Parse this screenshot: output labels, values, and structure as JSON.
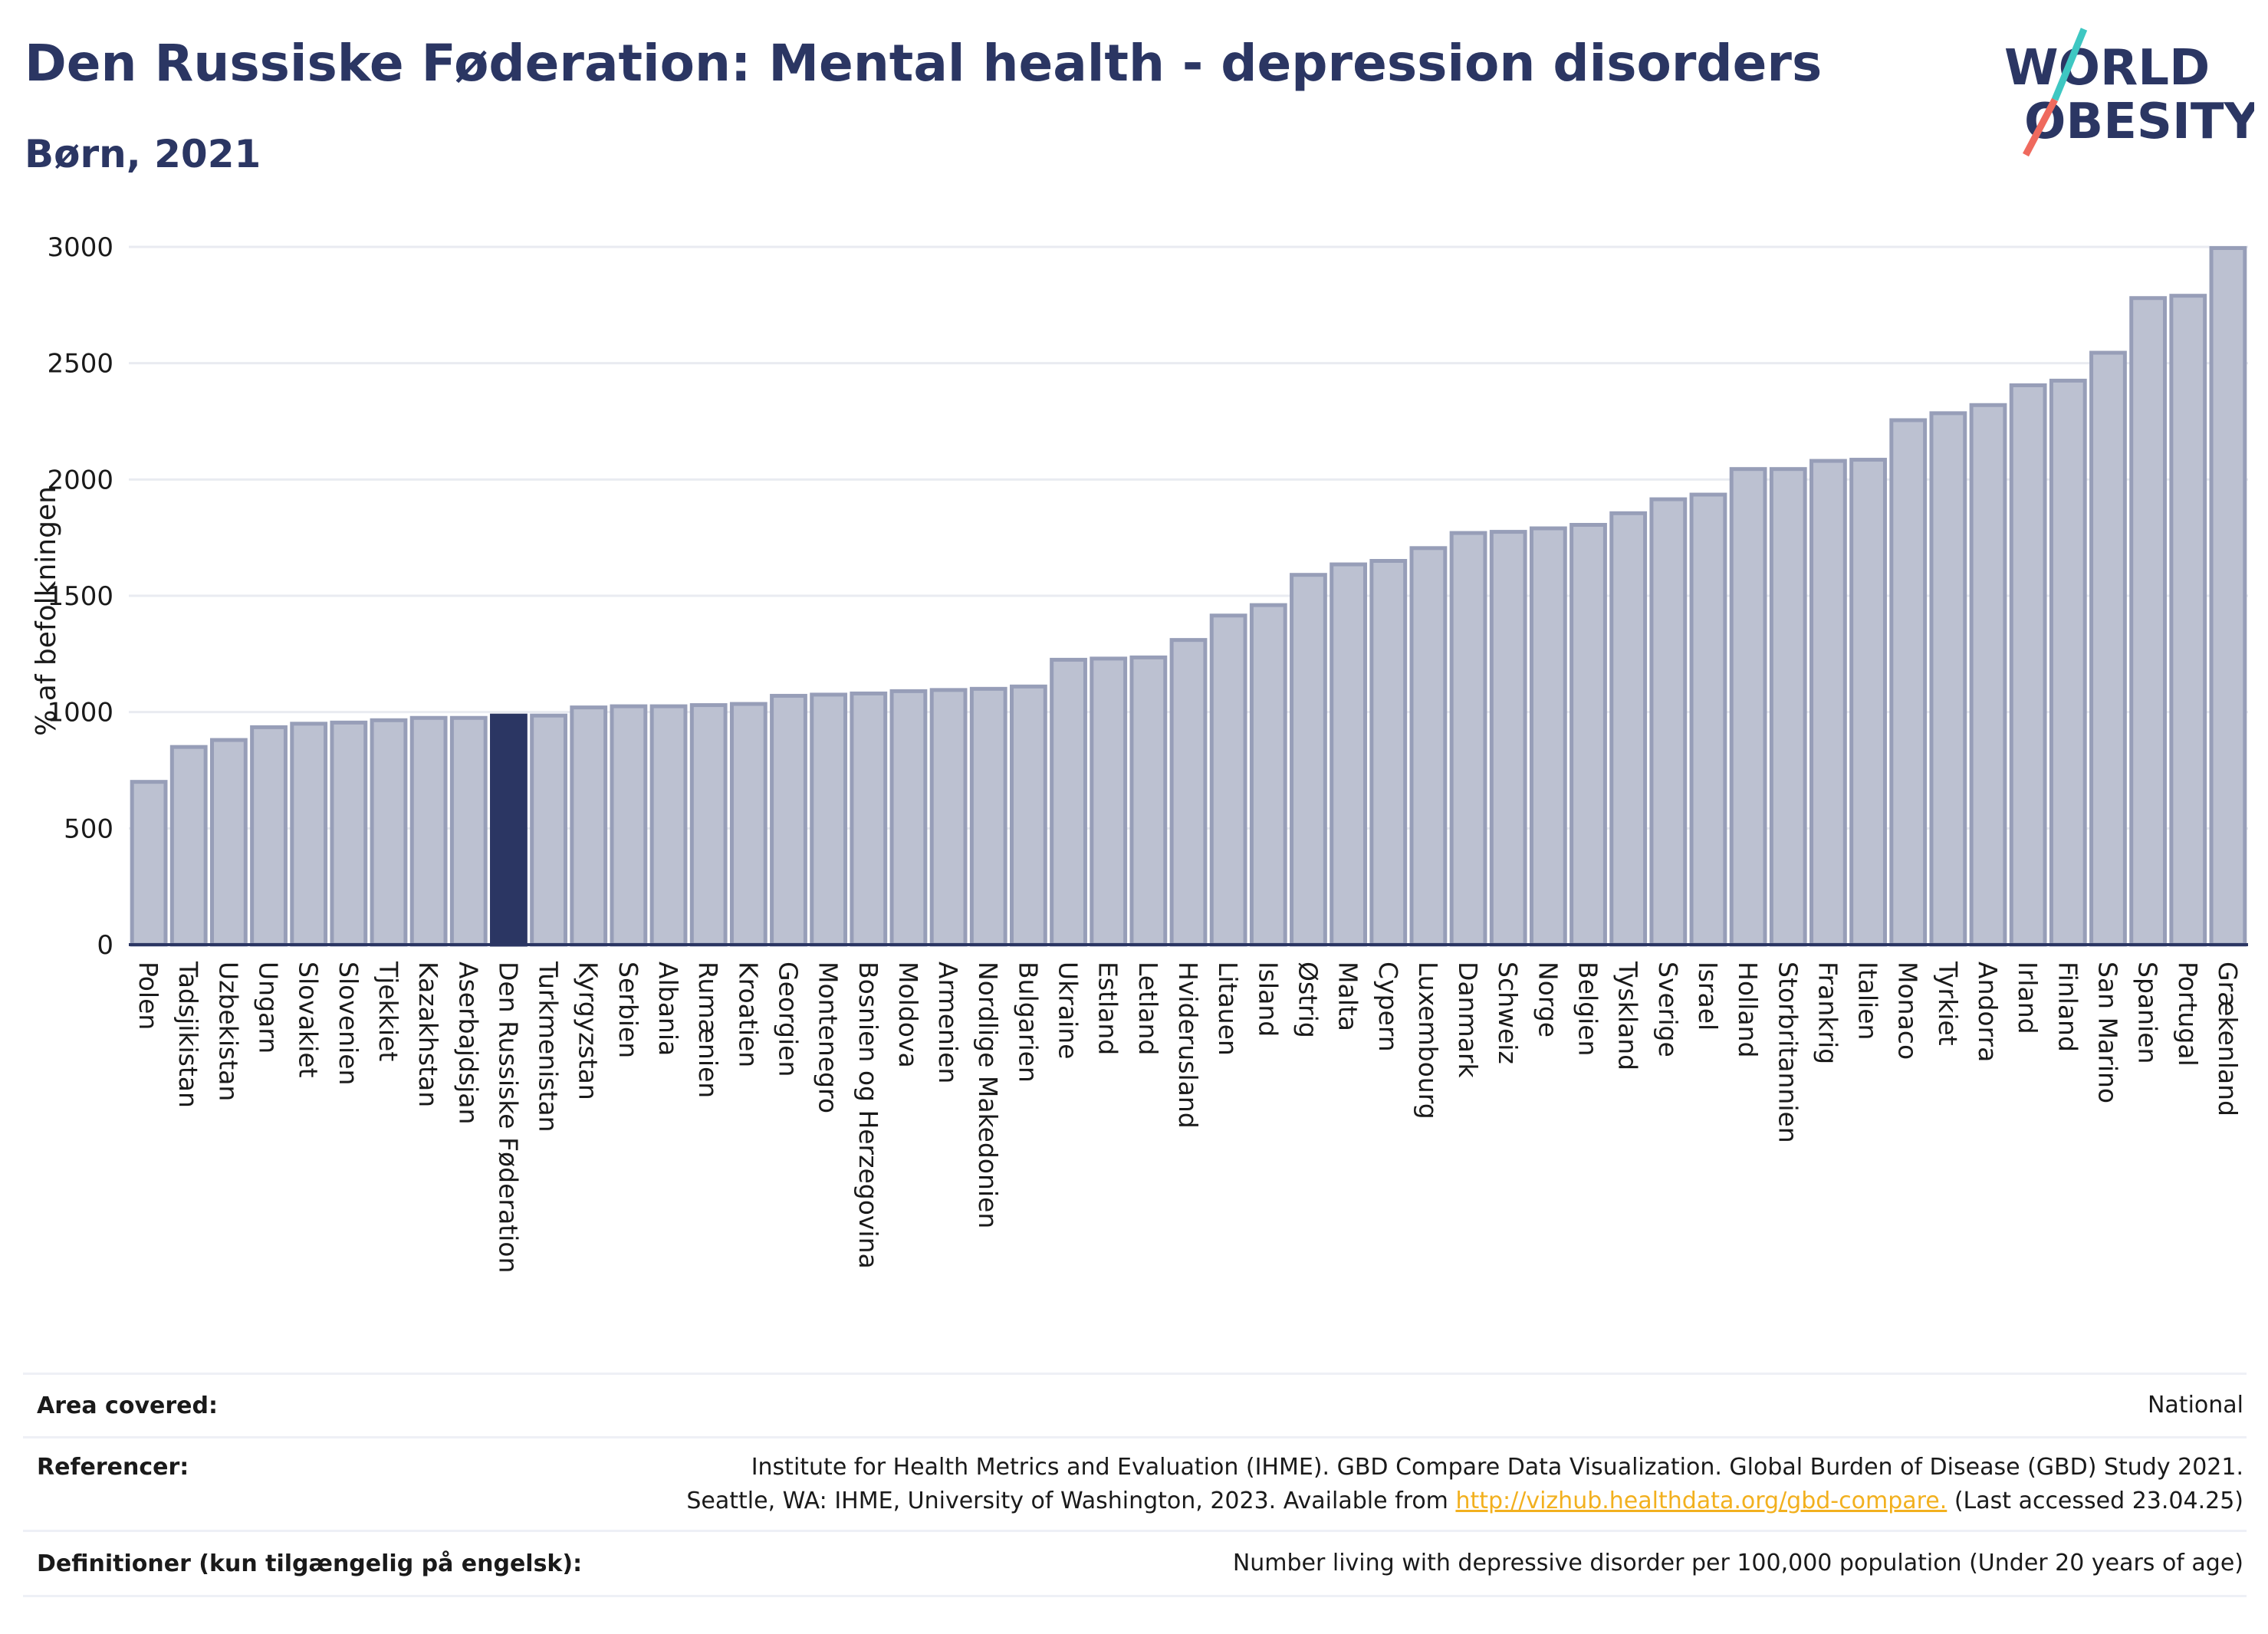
{
  "title": "Den Russiske Føderation: Mental health - depression disorders",
  "subtitle": "Børn, 2021",
  "logo": {
    "line1": "WORLD",
    "line2": "OBESITY"
  },
  "colors": {
    "bar": "#bcc1d1",
    "bar_border": "#979eb8",
    "highlight": "#2b3663",
    "title": "#2b3663",
    "grid": "#e9ebf1",
    "link": "#f2b01e",
    "logo_teal": "#3ec7c2",
    "logo_coral": "#ef6a5e"
  },
  "chart_data": {
    "type": "bar",
    "ylabel": "% af befolkningen",
    "ylim": [
      0,
      3000
    ],
    "yticks": [
      0,
      500,
      1000,
      1500,
      2000,
      2500,
      3000
    ],
    "highlight": "Den Russiske Føderation",
    "grid": true,
    "categories": [
      "Polen",
      "Tadsjikistan",
      "Uzbekistan",
      "Ungarn",
      "Slovakiet",
      "Slovenien",
      "Tjekkiet",
      "Kazakhstan",
      "Aserbajdsjan",
      "Den Russiske Føderation",
      "Turkmenistan",
      "Kyrgyzstan",
      "Serbien",
      "Albania",
      "Rumænien",
      "Kroatien",
      "Georgien",
      "Montenegro",
      "Bosnien og Herzegovina",
      "Moldova",
      "Armenien",
      "Nordlige Makedonien",
      "Bulgarien",
      "Ukraine",
      "Estland",
      "Letland",
      "Hviderusland",
      "Litauen",
      "Island",
      "Østrig",
      "Malta",
      "Cypern",
      "Luxembourg",
      "Danmark",
      "Schweiz",
      "Norge",
      "Belgien",
      "Tyskland",
      "Sverige",
      "Israel",
      "Holland",
      "Storbritannien",
      "Frankrig",
      "Italien",
      "Monaco",
      "Tyrkiet",
      "Andorra",
      "Irland",
      "Finland",
      "San Marino",
      "Spanien",
      "Portugal",
      "Grækenland"
    ],
    "values": [
      700,
      850,
      880,
      935,
      950,
      955,
      965,
      975,
      975,
      985,
      985,
      1020,
      1025,
      1025,
      1030,
      1035,
      1070,
      1075,
      1080,
      1090,
      1095,
      1100,
      1110,
      1225,
      1230,
      1235,
      1310,
      1415,
      1460,
      1590,
      1635,
      1650,
      1705,
      1770,
      1775,
      1790,
      1805,
      1855,
      1915,
      1935,
      2045,
      2045,
      2080,
      2085,
      2255,
      2285,
      2320,
      2405,
      2425,
      2545,
      2780,
      2790,
      2995
    ]
  },
  "footer": {
    "area_label": "Area covered:",
    "area_value": "National",
    "ref_label": "Referencer:",
    "ref_line1": "Institute for Health Metrics and Evaluation (IHME). GBD Compare Data Visualization. Global Burden of Disease (GBD) Study 2021.",
    "ref_line2_pre": "Seattle, WA: IHME, University of Washington, 2023. Available from ",
    "ref_link": "http://vizhub.healthdata.org/gbd-compare.",
    "ref_line2_post": " (Last accessed 23.04.25)",
    "def_label": "Definitioner (kun tilgængelig på engelsk):",
    "def_value": "Number living with depressive disorder per 100,000 population (Under 20 years of age)"
  }
}
